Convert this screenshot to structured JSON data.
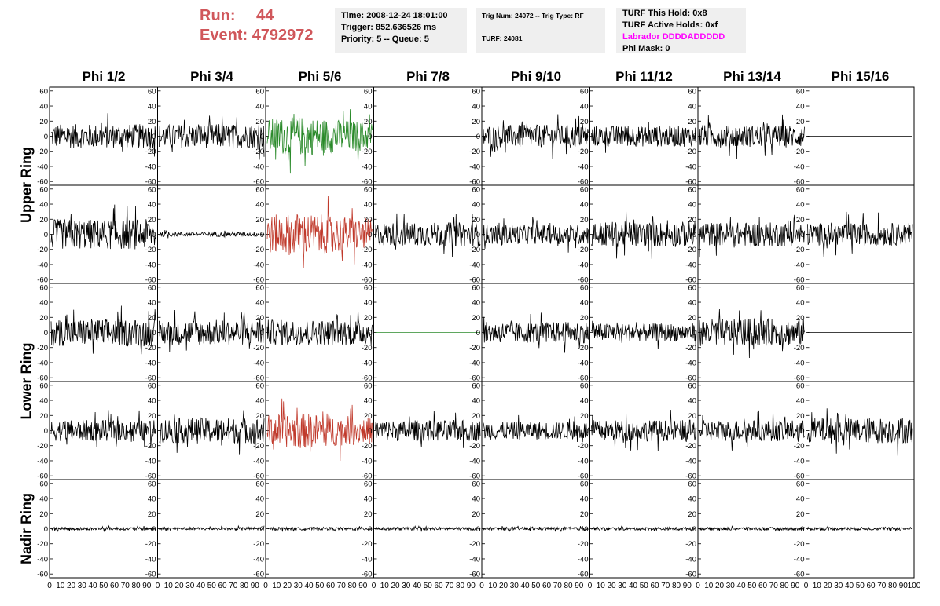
{
  "run": {
    "run_label": "Run:",
    "run_value": "44",
    "event_label": "Event:",
    "event_value": "4792972"
  },
  "info_time": {
    "time": "Time: 2008-12-24 18:01:00",
    "trigger": "Trigger: 852.636526 ms",
    "priority": "Priority: 5 -- Queue: 5"
  },
  "info_trig": {
    "trig": "Trig Num: 24072 -- Trig Type: RF",
    "turf": "TURF: 24081"
  },
  "info_turf": {
    "hold": "TURF This Hold: 0x8",
    "active": "TURF Active Holds: 0xf",
    "labrador": "Labrador DDDDADDDDD",
    "phimask": "Phi Mask: 0"
  },
  "columns": [
    "Phi 1/2",
    "Phi 3/4",
    "Phi 5/6",
    "Phi 7/8",
    "Phi 9/10",
    "Phi 11/12",
    "Phi 13/14",
    "Phi 15/16"
  ],
  "rows": [
    "Upper Ring",
    "Lower Ring",
    "Nadir Ring"
  ],
  "axis": {
    "yticks": [
      "60",
      "40",
      "20",
      "0",
      "-20",
      "-40",
      "-60"
    ],
    "xticks": [
      "0",
      "10",
      "20",
      "30",
      "40",
      "50",
      "60",
      "70",
      "80",
      "90",
      "100"
    ],
    "yrange": [
      -65,
      65
    ],
    "xrange": [
      0,
      100
    ]
  },
  "colors": {
    "header": "#d0575b",
    "magenta": "#ff00ff",
    "trace_default": "#000000",
    "trace_green": "#2a8a2a",
    "trace_red": "#c0392b"
  },
  "chart_data": {
    "type": "line",
    "x_range": [
      0,
      100
    ],
    "y_range": [
      -65,
      65
    ],
    "panels": [
      [
        {
          "amp": 16,
          "color": "black"
        },
        {
          "amp": 16,
          "color": "black"
        },
        {
          "amp": 22,
          "color": "green"
        },
        {
          "amp": 0,
          "color": "black"
        },
        {
          "amp": 15,
          "color": "black"
        },
        {
          "amp": 14,
          "color": "black"
        },
        {
          "amp": 15,
          "color": "black"
        },
        {
          "amp": 0,
          "color": "black"
        }
      ],
      [
        {
          "amp": 20,
          "color": "black"
        },
        {
          "amp": 3,
          "color": "black"
        },
        {
          "amp": 24,
          "color": "red"
        },
        {
          "amp": 16,
          "color": "black"
        },
        {
          "amp": 13,
          "color": "black"
        },
        {
          "amp": 17,
          "color": "black"
        },
        {
          "amp": 16,
          "color": "black"
        },
        {
          "amp": 15,
          "color": "black"
        }
      ],
      [
        {
          "amp": 18,
          "color": "black"
        },
        {
          "amp": 17,
          "color": "black"
        },
        {
          "amp": 17,
          "color": "black"
        },
        {
          "amp": 0,
          "color": "green"
        },
        {
          "amp": 14,
          "color": "black"
        },
        {
          "amp": 12,
          "color": "black"
        },
        {
          "amp": 18,
          "color": "black"
        },
        {
          "amp": 0,
          "color": "black"
        }
      ],
      [
        {
          "amp": 14,
          "color": "black"
        },
        {
          "amp": 17,
          "color": "black"
        },
        {
          "amp": 20,
          "color": "red"
        },
        {
          "amp": 14,
          "color": "black"
        },
        {
          "amp": 12,
          "color": "black"
        },
        {
          "amp": 14,
          "color": "black"
        },
        {
          "amp": 14,
          "color": "black"
        },
        {
          "amp": 17,
          "color": "black"
        }
      ],
      [
        {
          "amp": 2,
          "color": "black"
        },
        {
          "amp": 2,
          "color": "black"
        },
        {
          "amp": 2,
          "color": "black"
        },
        {
          "amp": 2,
          "color": "black"
        },
        {
          "amp": 2,
          "color": "black"
        },
        {
          "amp": 2,
          "color": "black"
        },
        {
          "amp": 2,
          "color": "black"
        },
        {
          "amp": 2,
          "color": "black"
        }
      ]
    ]
  }
}
